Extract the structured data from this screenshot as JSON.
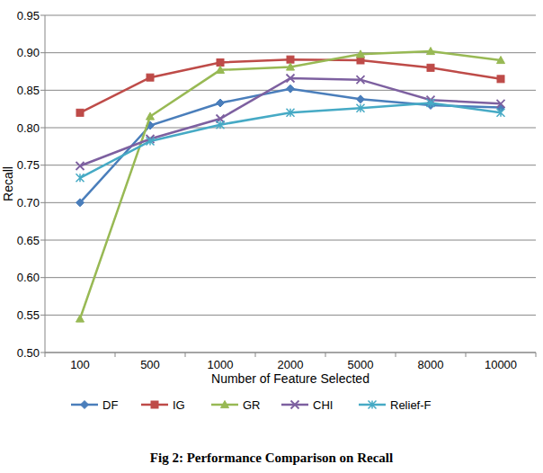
{
  "chart_data": {
    "type": "line",
    "title": "Fig 2: Performance Comparison on Recall",
    "x_label": "Number of Feature Selected",
    "y_label": "Recall",
    "categories": [
      "100",
      "500",
      "1000",
      "2000",
      "5000",
      "8000",
      "10000"
    ],
    "series": [
      {
        "name": "DF",
        "color": "#4a7ebb",
        "marker": "diamond",
        "values": [
          0.7,
          0.803,
          0.833,
          0.852,
          0.838,
          0.83,
          0.827
        ]
      },
      {
        "name": "IG",
        "color": "#be4b48",
        "marker": "square",
        "values": [
          0.82,
          0.867,
          0.887,
          0.891,
          0.89,
          0.88,
          0.865
        ]
      },
      {
        "name": "GR",
        "color": "#98b954",
        "marker": "triangle",
        "values": [
          0.545,
          0.815,
          0.877,
          0.881,
          0.898,
          0.902,
          0.89
        ]
      },
      {
        "name": "CHI",
        "color": "#7d60a0",
        "marker": "x",
        "values": [
          0.749,
          0.785,
          0.812,
          0.866,
          0.864,
          0.837,
          0.832
        ]
      },
      {
        "name": "Relief-F",
        "color": "#46aac5",
        "marker": "asterisk",
        "values": [
          0.733,
          0.782,
          0.804,
          0.82,
          0.826,
          0.833,
          0.82
        ]
      }
    ],
    "ylim": [
      0.5,
      0.95
    ],
    "yticks": [
      {
        "value": 0.5,
        "label": "0.50"
      },
      0.55,
      {
        "value": 0.6,
        "label": "0.60"
      },
      0.65,
      {
        "value": 0.7,
        "label": "0.70"
      },
      0.75,
      {
        "value": 0.8,
        "label": "0.80"
      },
      0.85,
      {
        "value": 0.9,
        "label": "0.90"
      },
      0.95
    ],
    "grid": true,
    "legend": "bottom"
  }
}
